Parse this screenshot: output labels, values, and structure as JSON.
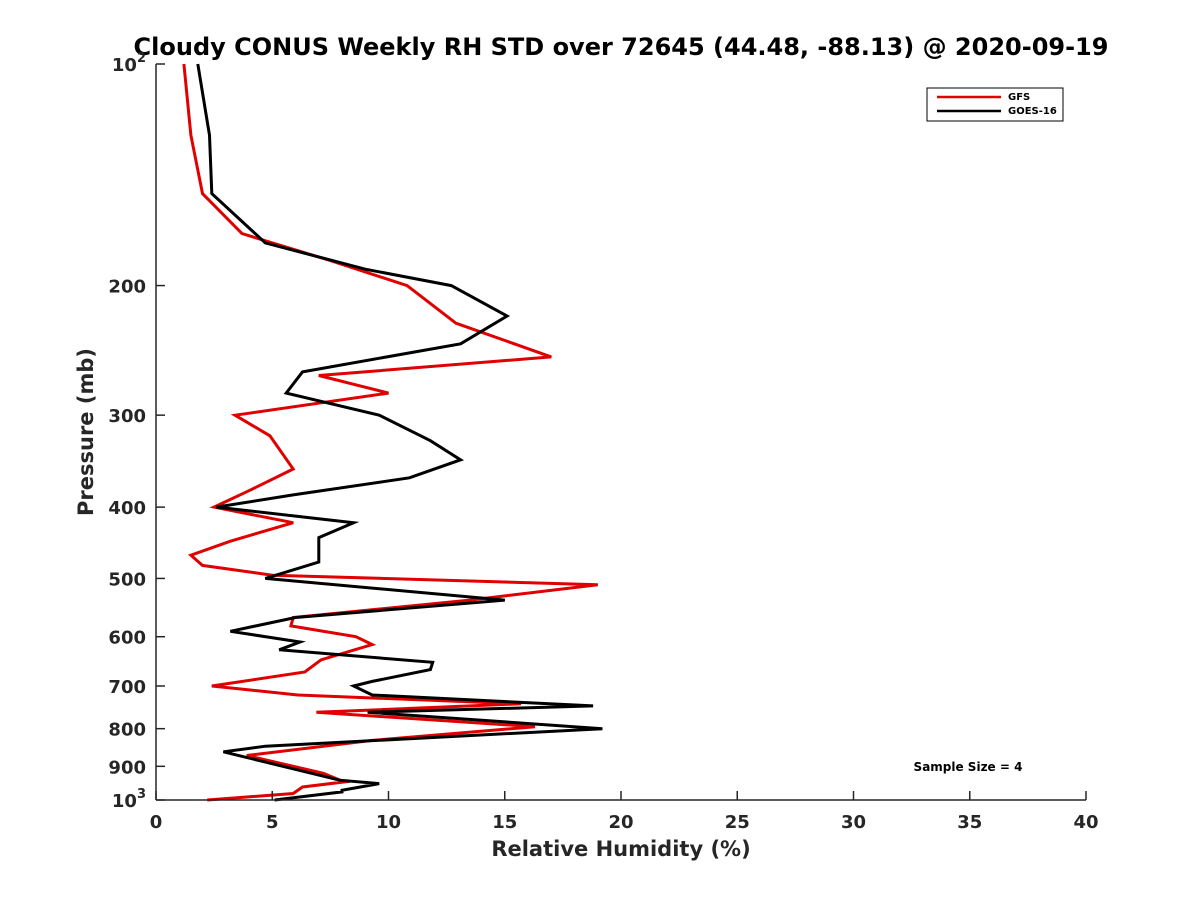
{
  "chart_data": {
    "type": "line",
    "title": "Cloudy CONUS Weekly RH STD over 72645 (44.48, -88.13) @ 2020-09-19",
    "xlabel": "Relative Humidity (%)",
    "ylabel": "Pressure (mb)",
    "xlim": [
      0,
      40
    ],
    "ylim": [
      100,
      1000
    ],
    "y_scale": "log",
    "y_reversed": true,
    "x_ticks": [
      "0",
      "5",
      "10",
      "15",
      "20",
      "25",
      "30",
      "35",
      "40"
    ],
    "y_ticks": [
      {
        "value": 100,
        "base": "10",
        "exp": "2"
      },
      {
        "value": 200,
        "label": "200"
      },
      {
        "value": 300,
        "label": "300"
      },
      {
        "value": 400,
        "label": "400"
      },
      {
        "value": 500,
        "label": "500"
      },
      {
        "value": 600,
        "label": "600"
      },
      {
        "value": 700,
        "label": "700"
      },
      {
        "value": 800,
        "label": "800"
      },
      {
        "value": 900,
        "label": "900"
      },
      {
        "value": 1000,
        "base": "10",
        "exp": "3"
      }
    ],
    "legend_position": "top-right",
    "grid": false,
    "annotation": "Sample Size = 4",
    "series": [
      {
        "name": "GFS",
        "color": "#e00000",
        "points": [
          [
            1.2,
            100
          ],
          [
            1.5,
            125
          ],
          [
            2.0,
            150
          ],
          [
            3.7,
            170
          ],
          [
            7.5,
            185
          ],
          [
            10.8,
            200
          ],
          [
            12.9,
            225
          ],
          [
            17.0,
            250
          ],
          [
            7.0,
            265
          ],
          [
            10.0,
            280
          ],
          [
            3.4,
            300
          ],
          [
            4.9,
            320
          ],
          [
            5.9,
            355
          ],
          [
            4.0,
            380
          ],
          [
            2.5,
            400
          ],
          [
            5.9,
            420
          ],
          [
            3.2,
            445
          ],
          [
            1.5,
            465
          ],
          [
            2.0,
            480
          ],
          [
            5.0,
            495
          ],
          [
            19.0,
            510
          ],
          [
            13.5,
            535
          ],
          [
            5.9,
            565
          ],
          [
            5.8,
            580
          ],
          [
            8.6,
            600
          ],
          [
            9.3,
            615
          ],
          [
            7.1,
            645
          ],
          [
            6.4,
            670
          ],
          [
            2.4,
            700
          ],
          [
            6.1,
            720
          ],
          [
            15.7,
            740
          ],
          [
            6.9,
            760
          ],
          [
            16.3,
            795
          ],
          [
            9.3,
            830
          ],
          [
            3.9,
            870
          ],
          [
            7.2,
            920
          ],
          [
            8.1,
            945
          ],
          [
            6.3,
            960
          ],
          [
            5.9,
            980
          ],
          [
            2.2,
            1000
          ]
        ]
      },
      {
        "name": "GOES-16",
        "color": "#000000",
        "points": [
          [
            1.8,
            100
          ],
          [
            2.3,
            125
          ],
          [
            2.4,
            150
          ],
          [
            4.7,
            175
          ],
          [
            9.0,
            190
          ],
          [
            12.7,
            200
          ],
          [
            15.1,
            220
          ],
          [
            13.1,
            240
          ],
          [
            6.3,
            262
          ],
          [
            5.6,
            280
          ],
          [
            9.6,
            300
          ],
          [
            11.8,
            325
          ],
          [
            13.1,
            345
          ],
          [
            10.9,
            365
          ],
          [
            5.9,
            385
          ],
          [
            2.6,
            400
          ],
          [
            8.5,
            420
          ],
          [
            7.0,
            440
          ],
          [
            7.0,
            475
          ],
          [
            4.7,
            500
          ],
          [
            15.0,
            535
          ],
          [
            6.0,
            565
          ],
          [
            3.2,
            590
          ],
          [
            6.2,
            610
          ],
          [
            5.3,
            625
          ],
          [
            11.9,
            650
          ],
          [
            11.8,
            665
          ],
          [
            9.3,
            690
          ],
          [
            8.5,
            700
          ],
          [
            9.3,
            720
          ],
          [
            18.8,
            745
          ],
          [
            9.1,
            760
          ],
          [
            19.2,
            800
          ],
          [
            4.7,
            845
          ],
          [
            2.9,
            860
          ],
          [
            7.9,
            940
          ],
          [
            9.6,
            950
          ],
          [
            8.0,
            970
          ],
          [
            8.0,
            975
          ],
          [
            5.1,
            1000
          ]
        ]
      }
    ]
  }
}
